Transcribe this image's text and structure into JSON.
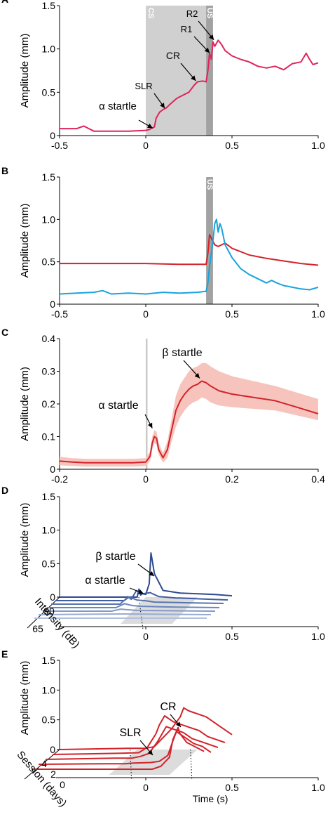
{
  "chart_data": [
    {
      "panel": "A",
      "type": "line",
      "ylabel": "Amplitude (mm)",
      "xlim": [
        -0.5,
        1.0
      ],
      "ylim": [
        0,
        1.5
      ],
      "xticks": [
        "-0.5",
        "0",
        "0.5",
        "1.0"
      ],
      "yticks": [
        "0",
        "0.5",
        "1.0",
        "1.5"
      ],
      "shaded": [
        {
          "label": "CS",
          "from": 0,
          "to": 0.35,
          "color": "#d0d0d0"
        },
        {
          "label": "US",
          "from": 0.35,
          "to": 0.39,
          "color": "#a2a2a2"
        }
      ],
      "annotations": [
        "α startle",
        "SLR",
        "CR",
        "R1",
        "R2"
      ],
      "series": [
        {
          "color": "#e0245a",
          "x": [
            -0.5,
            -0.4,
            -0.36,
            -0.33,
            -0.3,
            -0.2,
            -0.1,
            0,
            0.02,
            0.05,
            0.06,
            0.08,
            0.1,
            0.12,
            0.14,
            0.18,
            0.22,
            0.25,
            0.28,
            0.3,
            0.33,
            0.35,
            0.36,
            0.37,
            0.38,
            0.39,
            0.4,
            0.42,
            0.44,
            0.46,
            0.5,
            0.55,
            0.6,
            0.65,
            0.7,
            0.75,
            0.8,
            0.85,
            0.9,
            0.93,
            0.95,
            0.97,
            1.0
          ],
          "y": [
            0.08,
            0.08,
            0.11,
            0.08,
            0.05,
            0.05,
            0.05,
            0.06,
            0.07,
            0.1,
            0.2,
            0.27,
            0.3,
            0.32,
            0.36,
            0.43,
            0.47,
            0.5,
            0.58,
            0.62,
            0.63,
            0.62,
            0.75,
            0.95,
            0.88,
            1.08,
            1.03,
            1.1,
            1.05,
            0.98,
            0.92,
            0.88,
            0.85,
            0.8,
            0.78,
            0.8,
            0.76,
            0.83,
            0.85,
            0.95,
            0.88,
            0.82,
            0.84
          ]
        }
      ]
    },
    {
      "panel": "B",
      "type": "line",
      "ylabel": "Amplitude (mm)",
      "xlim": [
        -0.5,
        1.0
      ],
      "ylim": [
        0,
        1.5
      ],
      "xticks": [
        "-0.5",
        "0",
        "0.5",
        "1.0"
      ],
      "yticks": [
        "0",
        "0.5",
        "1.0",
        "1.5"
      ],
      "shaded": [
        {
          "label": "US",
          "from": 0.35,
          "to": 0.39,
          "color": "#a2a2a2"
        }
      ],
      "series": [
        {
          "color": "#d2232a",
          "x": [
            -0.5,
            -0.3,
            -0.1,
            0,
            0.2,
            0.35,
            0.36,
            0.37,
            0.38,
            0.4,
            0.42,
            0.44,
            0.46,
            0.5,
            0.6,
            0.7,
            0.8,
            0.9,
            1.0
          ],
          "y": [
            0.48,
            0.48,
            0.48,
            0.48,
            0.47,
            0.47,
            0.6,
            0.82,
            0.78,
            0.7,
            0.68,
            0.7,
            0.72,
            0.66,
            0.58,
            0.54,
            0.51,
            0.48,
            0.46
          ]
        },
        {
          "color": "#1aa3dc",
          "x": [
            -0.5,
            -0.4,
            -0.3,
            -0.25,
            -0.2,
            -0.1,
            0,
            0.1,
            0.2,
            0.3,
            0.34,
            0.35,
            0.36,
            0.37,
            0.38,
            0.39,
            0.4,
            0.41,
            0.42,
            0.43,
            0.44,
            0.46,
            0.5,
            0.55,
            0.6,
            0.65,
            0.7,
            0.73,
            0.76,
            0.8,
            0.85,
            0.9,
            0.95,
            1.0
          ],
          "y": [
            0.12,
            0.13,
            0.14,
            0.16,
            0.12,
            0.13,
            0.12,
            0.14,
            0.13,
            0.14,
            0.15,
            0.15,
            0.25,
            0.45,
            0.6,
            0.75,
            0.95,
            1.0,
            0.85,
            0.95,
            0.9,
            0.7,
            0.55,
            0.42,
            0.35,
            0.3,
            0.25,
            0.28,
            0.25,
            0.22,
            0.2,
            0.18,
            0.17,
            0.2
          ]
        }
      ]
    },
    {
      "panel": "C",
      "type": "line",
      "ylabel": "Amplitude (mm)",
      "xlim": [
        -0.2,
        0.4
      ],
      "ylim": [
        0,
        0.4
      ],
      "xticks": [
        "-0.2",
        "0",
        "0.2",
        "0.4"
      ],
      "yticks": [
        "0",
        "0.1",
        "0.2",
        "0.3",
        "0.4"
      ],
      "shaded": [
        {
          "label": "",
          "from": 0,
          "to": 0.004,
          "color": "#c8c8c8"
        }
      ],
      "annotations": [
        "α startle",
        "β startle"
      ],
      "series": [
        {
          "color": "#d2232a",
          "band_color": "#f7c4bd",
          "x": [
            -0.2,
            -0.17,
            -0.14,
            -0.1,
            -0.06,
            -0.03,
            0,
            0.01,
            0.015,
            0.02,
            0.025,
            0.03,
            0.04,
            0.05,
            0.06,
            0.07,
            0.08,
            0.09,
            0.1,
            0.11,
            0.12,
            0.13,
            0.14,
            0.15,
            0.17,
            0.2,
            0.25,
            0.3,
            0.35,
            0.4
          ],
          "y": [
            0.025,
            0.022,
            0.02,
            0.02,
            0.02,
            0.02,
            0.022,
            0.04,
            0.08,
            0.1,
            0.095,
            0.06,
            0.035,
            0.06,
            0.12,
            0.18,
            0.21,
            0.23,
            0.245,
            0.255,
            0.26,
            0.27,
            0.265,
            0.255,
            0.24,
            0.23,
            0.22,
            0.21,
            0.19,
            0.17
          ],
          "lower": [
            0.012,
            0.01,
            0.008,
            0.008,
            0.008,
            0.008,
            0.01,
            0.025,
            0.06,
            0.08,
            0.075,
            0.045,
            0.02,
            0.035,
            0.085,
            0.13,
            0.16,
            0.18,
            0.195,
            0.205,
            0.21,
            0.22,
            0.215,
            0.205,
            0.195,
            0.19,
            0.185,
            0.18,
            0.165,
            0.15
          ],
          "upper": [
            0.038,
            0.034,
            0.032,
            0.032,
            0.032,
            0.032,
            0.034,
            0.055,
            0.1,
            0.12,
            0.115,
            0.08,
            0.05,
            0.085,
            0.155,
            0.225,
            0.26,
            0.28,
            0.3,
            0.31,
            0.315,
            0.325,
            0.325,
            0.315,
            0.3,
            0.285,
            0.27,
            0.255,
            0.235,
            0.215
          ]
        }
      ]
    },
    {
      "panel": "D",
      "type": "line",
      "ylabel": "Amplitude (mm)",
      "depth_label": "Intensity (dB)",
      "depth_ticks": [
        "90",
        "65"
      ],
      "xlabel": "",
      "xlim": [
        -0.5,
        1.0
      ],
      "ylim": [
        0,
        1.5
      ],
      "xticks": [
        "0",
        "0.5",
        "1.0"
      ],
      "yticks": [
        "0",
        "0.5",
        "1.0",
        "1.5"
      ],
      "annotations": [
        "β startle",
        "α startle"
      ],
      "stack_colors": [
        "#2f4a8f",
        "#405ea0",
        "#5673ad",
        "#6b86ba",
        "#8299c6",
        "#99abd2",
        "#b2c0de"
      ],
      "series": [
        {
          "x": [
            -0.5,
            -0.05,
            -0.04,
            -0.03,
            -0.02,
            0,
            0.02,
            0.03,
            0.05,
            0.1,
            0.15,
            0.2,
            0.3,
            0.4,
            0.5
          ],
          "y": [
            0,
            0,
            0.12,
            0.03,
            0.05,
            0.04,
            0.2,
            0.66,
            0.35,
            0.1,
            0.08,
            0.06,
            0.05,
            0.04,
            0.02
          ]
        },
        {
          "x": [
            -0.5,
            -0.1,
            -0.08,
            -0.06,
            -0.03,
            0,
            0.05,
            0.1,
            0.2,
            0.3,
            0.4,
            0.5
          ],
          "y": [
            0,
            0,
            0.06,
            0.02,
            0.15,
            0.1,
            0.12,
            0.06,
            0.04,
            0.03,
            0.02,
            0.01
          ]
        },
        {
          "x": [
            -0.5,
            -0.1,
            -0.08,
            -0.05,
            -0.02,
            0,
            0.05,
            0.1,
            0.3,
            0.5
          ],
          "y": [
            0,
            0,
            0.05,
            0.1,
            0.08,
            0.06,
            0.05,
            0.03,
            0.02,
            0.01
          ]
        },
        {
          "x": [
            -0.5,
            -0.1,
            -0.05,
            -0.02,
            0,
            0.05,
            0.2,
            0.5
          ],
          "y": [
            0,
            0,
            0.06,
            0.04,
            0.03,
            0.02,
            0.01,
            0
          ]
        },
        {
          "x": [
            -0.5,
            -0.1,
            -0.05,
            0,
            0.05,
            0.5
          ],
          "y": [
            0,
            0,
            0.03,
            0.02,
            0.01,
            0
          ]
        },
        {
          "x": [
            -0.5,
            0,
            0.5
          ],
          "y": [
            0,
            0.01,
            0
          ]
        },
        {
          "x": [
            -0.5,
            0,
            0.5
          ],
          "y": [
            0,
            0,
            0
          ]
        }
      ]
    },
    {
      "panel": "E",
      "type": "line",
      "ylabel": "Amplitude (mm)",
      "depth_label": "Session (days)",
      "depth_ticks": [
        "4",
        "2",
        "0"
      ],
      "xlabel": "Time (s)",
      "xlim": [
        -0.5,
        1.0
      ],
      "ylim": [
        0,
        1.5
      ],
      "xticks": [
        "0",
        "0.5",
        "1.0"
      ],
      "yticks": [
        "0",
        "0.5",
        "1.0",
        "1.5"
      ],
      "annotations": [
        "CR",
        "SLR"
      ],
      "color": "#d2232a",
      "series": [
        {
          "x": [
            -0.5,
            -0.1,
            0,
            0.05,
            0.1,
            0.15,
            0.2,
            0.22,
            0.25,
            0.3,
            0.35,
            0.4,
            0.45,
            0.5
          ],
          "y": [
            0,
            0.02,
            0.02,
            0.05,
            0.2,
            0.35,
            0.55,
            0.7,
            0.65,
            0.6,
            0.55,
            0.45,
            0.35,
            0.25
          ]
        },
        {
          "x": [
            -0.5,
            -0.1,
            0,
            0.05,
            0.1,
            0.12,
            0.15,
            0.2,
            0.25,
            0.3,
            0.35,
            0.4,
            0.5
          ],
          "y": [
            0,
            0.02,
            0.03,
            0.12,
            0.35,
            0.5,
            0.65,
            0.55,
            0.5,
            0.45,
            0.4,
            0.3,
            0.2
          ]
        },
        {
          "x": [
            -0.5,
            -0.1,
            0,
            0.05,
            0.1,
            0.15,
            0.2,
            0.25,
            0.3,
            0.35,
            0.4,
            0.5
          ],
          "y": [
            0,
            0.02,
            0.02,
            0.05,
            0.1,
            0.3,
            0.55,
            0.5,
            0.45,
            0.35,
            0.3,
            0.2
          ]
        },
        {
          "x": [
            -0.5,
            -0.1,
            0,
            0.05,
            0.15,
            0.2,
            0.25,
            0.28,
            0.3,
            0.35,
            0.4,
            0.45,
            0.5
          ],
          "y": [
            0,
            0.01,
            0.01,
            0.02,
            0.03,
            0.05,
            0.15,
            0.4,
            0.55,
            0.45,
            0.35,
            0.3,
            0.2
          ]
        },
        {
          "x": [
            -0.5,
            0,
            0.1,
            0.2,
            0.25,
            0.3,
            0.32,
            0.35,
            0.36,
            0.4,
            0.5
          ],
          "y": [
            0,
            0,
            0,
            0,
            0.05,
            0.2,
            0.5,
            0.7,
            0.6,
            0.45,
            0.3
          ]
        }
      ]
    }
  ],
  "panel_labels": [
    "A",
    "B",
    "C",
    "D",
    "E"
  ]
}
